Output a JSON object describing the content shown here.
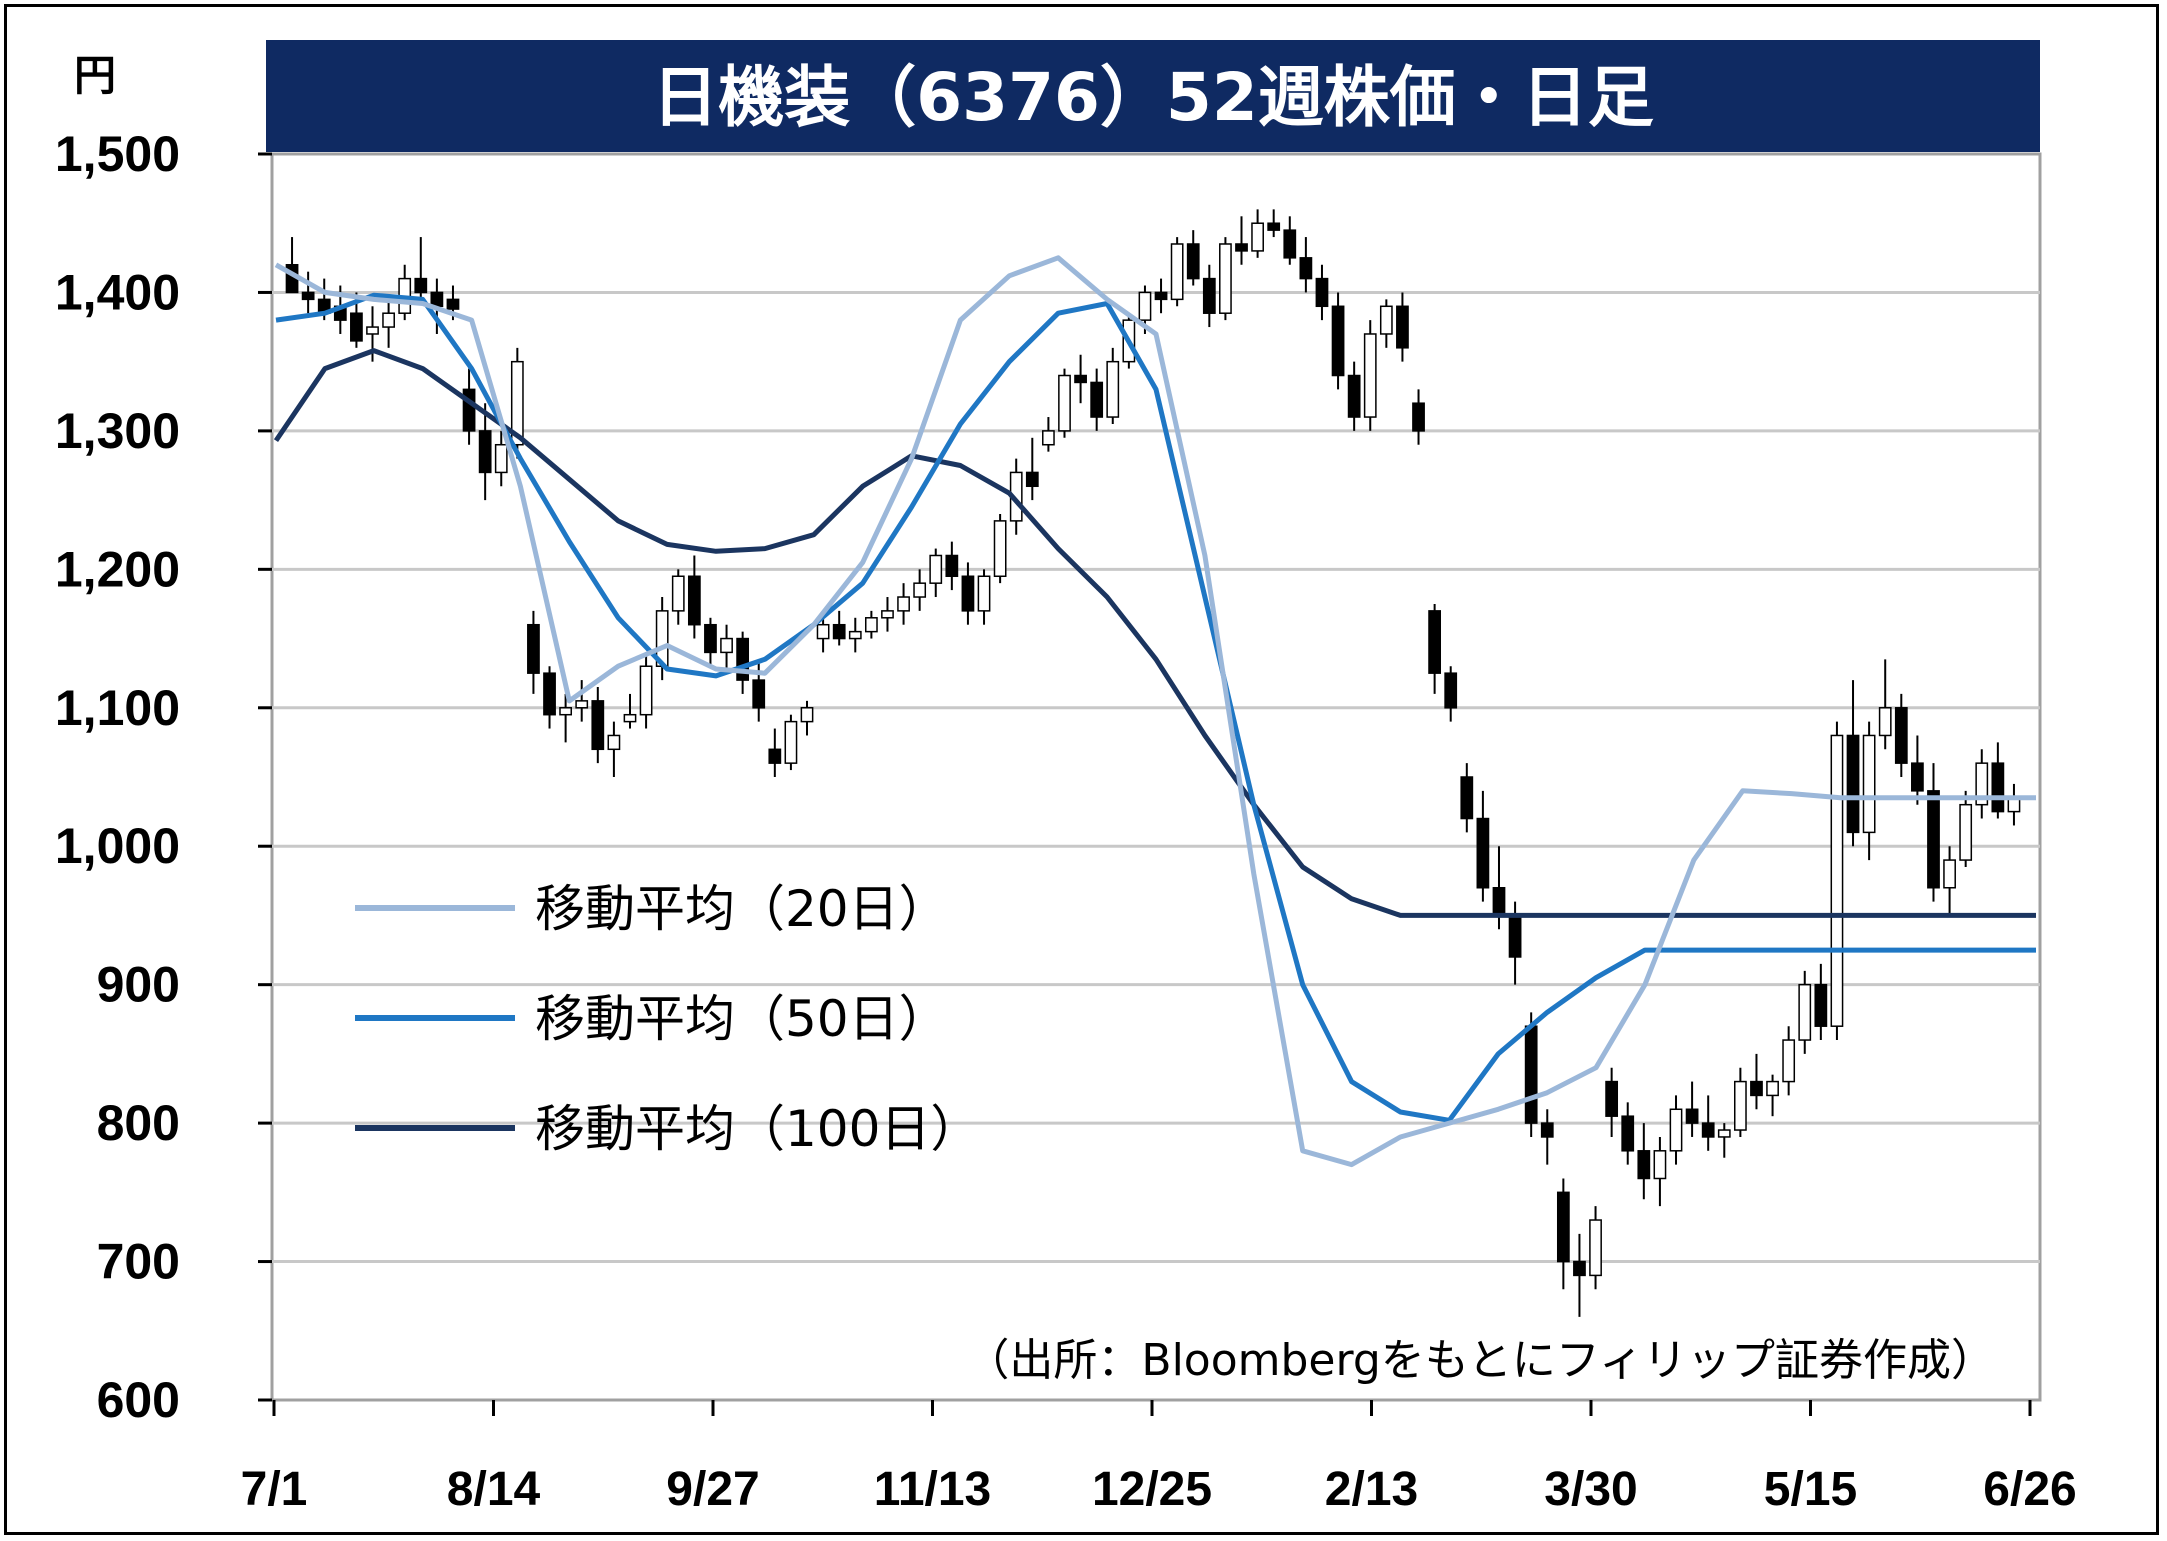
{
  "title": "日機装（6376）52週株価・日足",
  "unit_label": "円",
  "source": "（出所：Bloombergをもとにフィリップ証券作成）",
  "colors": {
    "title_bg": "#0f2a62",
    "ma20": "#9bb7d9",
    "ma50": "#1f77c4",
    "ma100": "#1b3560",
    "candle_up": "#ffffff",
    "candle_down": "#000000"
  },
  "chart_data": {
    "type": "candlestick",
    "title": "日機装（6376）52週株価・日足",
    "ylabel": "円",
    "ylim": [
      600,
      1500
    ],
    "yticks": [
      "1,500",
      "1,400",
      "1,300",
      "1,200",
      "1,100",
      "1,000",
      "900",
      "800",
      "700",
      "600"
    ],
    "ytick_values": [
      1500,
      1400,
      1300,
      1200,
      1100,
      1000,
      900,
      800,
      700,
      600
    ],
    "xticks": [
      "7/1",
      "8/14",
      "9/27",
      "11/13",
      "12/25",
      "2/13",
      "3/30",
      "5/15",
      "6/26"
    ],
    "grid": true,
    "legend_position": "left-middle",
    "series": [
      {
        "name": "移動平均（20日）",
        "x": [
          0,
          10,
          20,
          30,
          40,
          50,
          60,
          70,
          80,
          90,
          100,
          110,
          120,
          130,
          140,
          150,
          160,
          170,
          180,
          190,
          200,
          210,
          220,
          230,
          240,
          250,
          260,
          270,
          280,
          290,
          300,
          310,
          320,
          330,
          340,
          350,
          360
        ],
        "values": [
          1420,
          1400,
          1395,
          1392,
          1380,
          1260,
          1105,
          1130,
          1145,
          1128,
          1125,
          1160,
          1205,
          1280,
          1380,
          1412,
          1425,
          1395,
          1370,
          1210,
          980,
          780,
          770,
          790,
          800,
          810,
          822,
          840,
          900,
          990,
          1040,
          1038,
          1035,
          1035,
          1035,
          1035,
          1035
        ]
      },
      {
        "name": "移動平均（50日）",
        "x": [
          0,
          10,
          20,
          30,
          40,
          50,
          60,
          70,
          80,
          90,
          100,
          110,
          120,
          130,
          140,
          150,
          160,
          170,
          180,
          190,
          200,
          210,
          220,
          230,
          240,
          250,
          260,
          270,
          280,
          290,
          300,
          310,
          320,
          330,
          340,
          350,
          360
        ],
        "values": [
          1380,
          1385,
          1398,
          1395,
          1345,
          1280,
          1220,
          1165,
          1128,
          1123,
          1135,
          1160,
          1190,
          1245,
          1305,
          1350,
          1385,
          1392,
          1330,
          1180,
          1030,
          900,
          830,
          808,
          802,
          850,
          880,
          905,
          925,
          925,
          925,
          925,
          925,
          925,
          925,
          925,
          925
        ]
      },
      {
        "name": "移動平均（100日）",
        "x": [
          0,
          10,
          20,
          30,
          40,
          50,
          60,
          70,
          80,
          90,
          100,
          110,
          120,
          130,
          140,
          150,
          160,
          170,
          180,
          190,
          200,
          210,
          220,
          230,
          240,
          250,
          260,
          270,
          280,
          290,
          300,
          310,
          320,
          330,
          340,
          350,
          360
        ],
        "values": [
          1293,
          1345,
          1358,
          1345,
          1320,
          1295,
          1265,
          1235,
          1218,
          1213,
          1215,
          1225,
          1260,
          1282,
          1275,
          1255,
          1215,
          1180,
          1135,
          1080,
          1030,
          985,
          962,
          950,
          950,
          950,
          950,
          950,
          950,
          950,
          950,
          950,
          950,
          950,
          950,
          950,
          950
        ]
      }
    ],
    "candles": [
      [
        1420,
        1440,
        1405,
        1400
      ],
      [
        1400,
        1415,
        1385,
        1395
      ],
      [
        1395,
        1410,
        1380,
        1385
      ],
      [
        1390,
        1405,
        1370,
        1380
      ],
      [
        1385,
        1400,
        1360,
        1365
      ],
      [
        1370,
        1390,
        1350,
        1375
      ],
      [
        1375,
        1395,
        1360,
        1385
      ],
      [
        1385,
        1420,
        1380,
        1410
      ],
      [
        1410,
        1440,
        1395,
        1400
      ],
      [
        1400,
        1410,
        1370,
        1390
      ],
      [
        1395,
        1405,
        1380,
        1388
      ],
      [
        1330,
        1345,
        1290,
        1300
      ],
      [
        1300,
        1320,
        1250,
        1270
      ],
      [
        1270,
        1300,
        1260,
        1290
      ],
      [
        1290,
        1360,
        1280,
        1350
      ],
      [
        1160,
        1170,
        1110,
        1125
      ],
      [
        1125,
        1130,
        1085,
        1095
      ],
      [
        1095,
        1110,
        1075,
        1100
      ],
      [
        1100,
        1120,
        1090,
        1105
      ],
      [
        1105,
        1115,
        1060,
        1070
      ],
      [
        1070,
        1090,
        1050,
        1080
      ],
      [
        1090,
        1110,
        1085,
        1095
      ],
      [
        1095,
        1140,
        1085,
        1130
      ],
      [
        1130,
        1180,
        1120,
        1170
      ],
      [
        1170,
        1200,
        1160,
        1195
      ],
      [
        1195,
        1210,
        1150,
        1160
      ],
      [
        1160,
        1165,
        1130,
        1140
      ],
      [
        1140,
        1160,
        1125,
        1150
      ],
      [
        1150,
        1155,
        1110,
        1120
      ],
      [
        1120,
        1135,
        1090,
        1100
      ],
      [
        1070,
        1085,
        1050,
        1060
      ],
      [
        1060,
        1095,
        1055,
        1090
      ],
      [
        1090,
        1105,
        1080,
        1100
      ],
      [
        1150,
        1165,
        1140,
        1160
      ],
      [
        1160,
        1170,
        1145,
        1150
      ],
      [
        1150,
        1165,
        1140,
        1155
      ],
      [
        1155,
        1170,
        1150,
        1165
      ],
      [
        1165,
        1180,
        1155,
        1170
      ],
      [
        1170,
        1190,
        1160,
        1180
      ],
      [
        1180,
        1200,
        1170,
        1190
      ],
      [
        1190,
        1215,
        1180,
        1210
      ],
      [
        1210,
        1220,
        1185,
        1195
      ],
      [
        1195,
        1205,
        1160,
        1170
      ],
      [
        1170,
        1200,
        1160,
        1195
      ],
      [
        1195,
        1240,
        1190,
        1235
      ],
      [
        1235,
        1280,
        1225,
        1270
      ],
      [
        1270,
        1295,
        1250,
        1260
      ],
      [
        1290,
        1310,
        1285,
        1300
      ],
      [
        1300,
        1345,
        1295,
        1340
      ],
      [
        1340,
        1355,
        1320,
        1335
      ],
      [
        1335,
        1345,
        1300,
        1310
      ],
      [
        1310,
        1360,
        1305,
        1350
      ],
      [
        1350,
        1385,
        1345,
        1380
      ],
      [
        1380,
        1405,
        1370,
        1400
      ],
      [
        1400,
        1410,
        1385,
        1395
      ],
      [
        1395,
        1440,
        1390,
        1435
      ],
      [
        1435,
        1445,
        1405,
        1410
      ],
      [
        1410,
        1420,
        1375,
        1385
      ],
      [
        1385,
        1440,
        1380,
        1435
      ],
      [
        1435,
        1455,
        1420,
        1430
      ],
      [
        1430,
        1460,
        1425,
        1450
      ],
      [
        1450,
        1460,
        1440,
        1445
      ],
      [
        1445,
        1455,
        1420,
        1425
      ],
      [
        1425,
        1440,
        1400,
        1410
      ],
      [
        1410,
        1420,
        1380,
        1390
      ],
      [
        1390,
        1400,
        1330,
        1340
      ],
      [
        1340,
        1350,
        1300,
        1310
      ],
      [
        1310,
        1380,
        1300,
        1370
      ],
      [
        1370,
        1395,
        1360,
        1390
      ],
      [
        1390,
        1400,
        1350,
        1360
      ],
      [
        1320,
        1330,
        1290,
        1300
      ],
      [
        1170,
        1175,
        1110,
        1125
      ],
      [
        1125,
        1130,
        1090,
        1100
      ],
      [
        1050,
        1060,
        1010,
        1020
      ],
      [
        1020,
        1040,
        960,
        970
      ],
      [
        970,
        1000,
        940,
        950
      ],
      [
        950,
        960,
        900,
        920
      ],
      [
        870,
        880,
        790,
        800
      ],
      [
        800,
        810,
        770,
        790
      ],
      [
        750,
        760,
        680,
        700
      ],
      [
        700,
        720,
        660,
        690
      ],
      [
        690,
        740,
        680,
        730
      ],
      [
        830,
        840,
        790,
        805
      ],
      [
        805,
        815,
        770,
        780
      ],
      [
        780,
        800,
        745,
        760
      ],
      [
        760,
        790,
        740,
        780
      ],
      [
        780,
        820,
        770,
        810
      ],
      [
        810,
        830,
        790,
        800
      ],
      [
        800,
        820,
        780,
        790
      ],
      [
        790,
        800,
        775,
        795
      ],
      [
        795,
        840,
        790,
        830
      ],
      [
        830,
        850,
        810,
        820
      ],
      [
        820,
        835,
        805,
        830
      ],
      [
        830,
        870,
        820,
        860
      ],
      [
        860,
        910,
        850,
        900
      ],
      [
        900,
        915,
        860,
        870
      ],
      [
        870,
        1090,
        860,
        1080
      ],
      [
        1080,
        1120,
        1000,
        1010
      ],
      [
        1010,
        1090,
        990,
        1080
      ],
      [
        1080,
        1135,
        1070,
        1100
      ],
      [
        1100,
        1110,
        1050,
        1060
      ],
      [
        1060,
        1080,
        1030,
        1040
      ],
      [
        1040,
        1060,
        960,
        970
      ],
      [
        970,
        1000,
        950,
        990
      ],
      [
        990,
        1040,
        985,
        1030
      ],
      [
        1030,
        1070,
        1020,
        1060
      ],
      [
        1060,
        1075,
        1020,
        1025
      ],
      [
        1025,
        1045,
        1015,
        1035
      ]
    ]
  },
  "legend": [
    {
      "label": "移動平均（20日）"
    },
    {
      "label": "移動平均（50日）"
    },
    {
      "label": "移動平均（100日）"
    }
  ]
}
